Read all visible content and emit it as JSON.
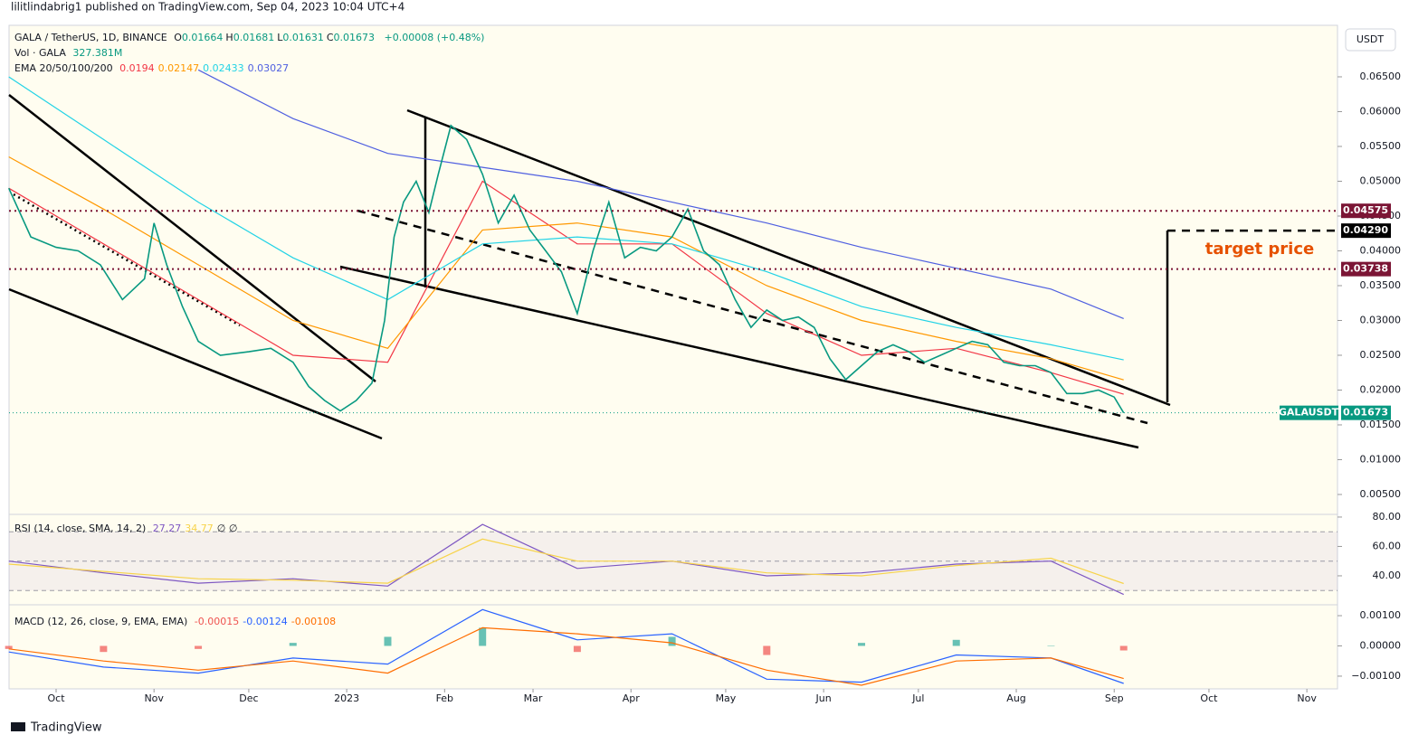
{
  "header": {
    "publisher": "lilitlindabrig1 published on TradingView.com, Sep 04, 2023 10:04 UTC+4",
    "currency": "USDT",
    "footer": "TradingView"
  },
  "chart_data": [
    {
      "type": "line",
      "title": "GALA / TetherUS, 1D, BINANCE",
      "ohlc_labels": [
        "O",
        "H",
        "L",
        "C"
      ],
      "ohlc_values": [
        0.01664,
        0.01681,
        0.01631,
        0.01673
      ],
      "change": "+0.00008 (+0.48%)",
      "volume_label": "Vol · GALA",
      "volume": "327.381M",
      "annotation": "target price",
      "xlim": [
        -14.9,
        405.7
      ],
      "xticks": [
        {
          "value": 0,
          "label": "Oct"
        },
        {
          "value": 31,
          "label": "Nov"
        },
        {
          "value": 61,
          "label": "Dec"
        },
        {
          "value": 92,
          "label": "2023"
        },
        {
          "value": 123,
          "label": "Feb"
        },
        {
          "value": 151,
          "label": "Mar"
        },
        {
          "value": 182,
          "label": "Apr"
        },
        {
          "value": 212,
          "label": "May"
        },
        {
          "value": 243,
          "label": "Jun"
        },
        {
          "value": 273,
          "label": "Jul"
        },
        {
          "value": 304,
          "label": "Aug"
        },
        {
          "value": 335,
          "label": "Sep"
        },
        {
          "value": 365,
          "label": "Oct"
        },
        {
          "value": 396,
          "label": "Nov"
        }
      ],
      "ylim": [
        0.00227,
        0.0724
      ],
      "yticks": [
        {
          "value": 0.005,
          "label": "0.00500"
        },
        {
          "value": 0.01,
          "label": "0.01000"
        },
        {
          "value": 0.015,
          "label": "0.01500"
        },
        {
          "value": 0.02,
          "label": "0.02000"
        },
        {
          "value": 0.025,
          "label": "0.02500"
        },
        {
          "value": 0.03,
          "label": "0.03000"
        },
        {
          "value": 0.035,
          "label": "0.03500"
        },
        {
          "value": 0.04,
          "label": "0.04000"
        },
        {
          "value": 0.045,
          "label": "0.04500"
        },
        {
          "value": 0.05,
          "label": "0.05000"
        },
        {
          "value": 0.055,
          "label": "0.05500"
        },
        {
          "value": 0.06,
          "label": "0.06000"
        },
        {
          "value": 0.065,
          "label": "0.06500"
        }
      ],
      "x": [
        -15,
        -8,
        0,
        7,
        14,
        21,
        28,
        31,
        35,
        40,
        45,
        52,
        61,
        68,
        75,
        80,
        85,
        90,
        95,
        100,
        104,
        107,
        110,
        114,
        118,
        121,
        125,
        130,
        135,
        140,
        145,
        150,
        155,
        160,
        165,
        170,
        175,
        180,
        185,
        190,
        195,
        200,
        205,
        210,
        215,
        220,
        225,
        230,
        235,
        240,
        245,
        250,
        255,
        260,
        265,
        270,
        275,
        280,
        285,
        290,
        295,
        300,
        305,
        310,
        315,
        320,
        325,
        330,
        335,
        338
      ],
      "series": [
        {
          "name": "GALAUSDT",
          "color": "#089981",
          "values": [
            0.049,
            0.042,
            0.0405,
            0.04,
            0.038,
            0.033,
            0.036,
            0.044,
            0.038,
            0.032,
            0.027,
            0.025,
            0.0255,
            0.026,
            0.024,
            0.0205,
            0.0185,
            0.017,
            0.0185,
            0.021,
            0.03,
            0.042,
            0.047,
            0.05,
            0.0455,
            0.051,
            0.058,
            0.056,
            0.051,
            0.044,
            0.048,
            0.043,
            0.04,
            0.037,
            0.031,
            0.04,
            0.047,
            0.039,
            0.0405,
            0.04,
            0.042,
            0.046,
            0.04,
            0.038,
            0.033,
            0.029,
            0.0315,
            0.03,
            0.0305,
            0.029,
            0.0245,
            0.0215,
            0.0235,
            0.0255,
            0.0265,
            0.0255,
            0.024,
            0.025,
            0.026,
            0.027,
            0.0265,
            0.024,
            0.0235,
            0.0235,
            0.0225,
            0.0195,
            0.0195,
            0.02,
            0.019,
            0.01673
          ]
        }
      ],
      "ema": {
        "label": "EMA 20/50/100/200",
        "x": [
          -15,
          15,
          45,
          75,
          105,
          135,
          165,
          195,
          225,
          255,
          285,
          315,
          338
        ],
        "series": [
          {
            "color": "#f23645",
            "values": [
              0.049,
              0.041,
              0.033,
              0.025,
              0.024,
              0.05,
              0.041,
              0.041,
              0.031,
              0.025,
              0.026,
              0.0225,
              0.0194
            ]
          },
          {
            "color": "#ff9800",
            "values": [
              0.0535,
              0.046,
              0.038,
              0.03,
              0.026,
              0.043,
              0.044,
              0.042,
              0.035,
              0.03,
              0.027,
              0.0245,
              0.02147
            ]
          },
          {
            "color": "#22d3e6",
            "values": [
              0.065,
              0.056,
              0.047,
              0.039,
              0.033,
              0.041,
              0.042,
              0.041,
              0.037,
              0.032,
              0.029,
              0.0265,
              0.02433
            ]
          },
          {
            "color": "#4f5fe0",
            "values": [
              null,
              null,
              0.066,
              0.059,
              0.054,
              0.052,
              0.05,
              0.047,
              0.044,
              0.0405,
              0.0375,
              0.0345,
              0.03027
            ]
          }
        ]
      },
      "price_lines": [
        {
          "value": 0.04575,
          "label": "0.04575",
          "color": "#7b1535",
          "style": "dotted"
        },
        {
          "value": 0.0429,
          "label": "0.04290",
          "color": "#000000",
          "style": "target"
        },
        {
          "value": 0.03738,
          "label": "0.03738",
          "color": "#7b1535",
          "style": "dotted"
        },
        {
          "value": 0.01673,
          "label": "0.01673",
          "color": "#089981",
          "style": "last",
          "name": "GALAUSDT"
        }
      ]
    },
    {
      "type": "line",
      "title": "RSI (14, close, SMA, 14, 2)",
      "na": "∅ ∅",
      "ylim": [
        20.9,
        81.2
      ],
      "yticks": [
        {
          "value": 40,
          "label": "40.00"
        },
        {
          "value": 60,
          "label": "60.00"
        },
        {
          "value": 80,
          "label": "80.00"
        }
      ],
      "bands": [
        70,
        50,
        30
      ],
      "x": [
        -15,
        15,
        45,
        75,
        105,
        135,
        165,
        195,
        225,
        255,
        285,
        315,
        338
      ],
      "series": [
        {
          "color": "#7e57c2",
          "values": [
            50,
            42,
            35,
            38,
            33,
            75,
            45,
            50,
            40,
            42,
            48,
            50,
            27.27
          ]
        },
        {
          "color": "#f7d34a",
          "values": [
            48,
            43,
            38,
            37,
            35,
            65,
            50,
            50,
            42,
            40,
            47,
            52,
            34.77
          ]
        }
      ]
    },
    {
      "type": "line",
      "title": "MACD (12, 26, close, 9, EMA, EMA)",
      "ylim": [
        -0.00142,
        0.00133
      ],
      "yticks": [
        {
          "value": -0.001,
          "label": "−0.00100"
        },
        {
          "value": 0,
          "label": "0.00000"
        },
        {
          "value": 0.001,
          "label": "0.00100"
        }
      ],
      "x": [
        -15,
        15,
        45,
        75,
        105,
        135,
        165,
        195,
        225,
        255,
        285,
        315,
        338
      ],
      "histogram": {
        "colors": [
          "#26a69a",
          "#ef5350"
        ],
        "values": [
          -0.0001,
          -0.0002,
          -0.0001,
          0.0001,
          0.0003,
          0.0006,
          -0.0002,
          0.0003,
          -0.0003,
          0.0001,
          0.0002,
          0,
          -0.00015
        ]
      },
      "series": [
        {
          "color": "#2962ff",
          "values": [
            -0.0002,
            -0.0007,
            -0.0009,
            -0.0004,
            -0.0006,
            0.0012,
            0.0002,
            0.0004,
            -0.0011,
            -0.0012,
            -0.0003,
            -0.0004,
            -0.00124
          ]
        },
        {
          "color": "#ff6d00",
          "values": [
            -0.0001,
            -0.0005,
            -0.0008,
            -0.0005,
            -0.0009,
            0.0006,
            0.0004,
            0.0001,
            -0.0008,
            -0.0013,
            -0.0005,
            -0.0004,
            -0.00108
          ]
        }
      ]
    }
  ]
}
